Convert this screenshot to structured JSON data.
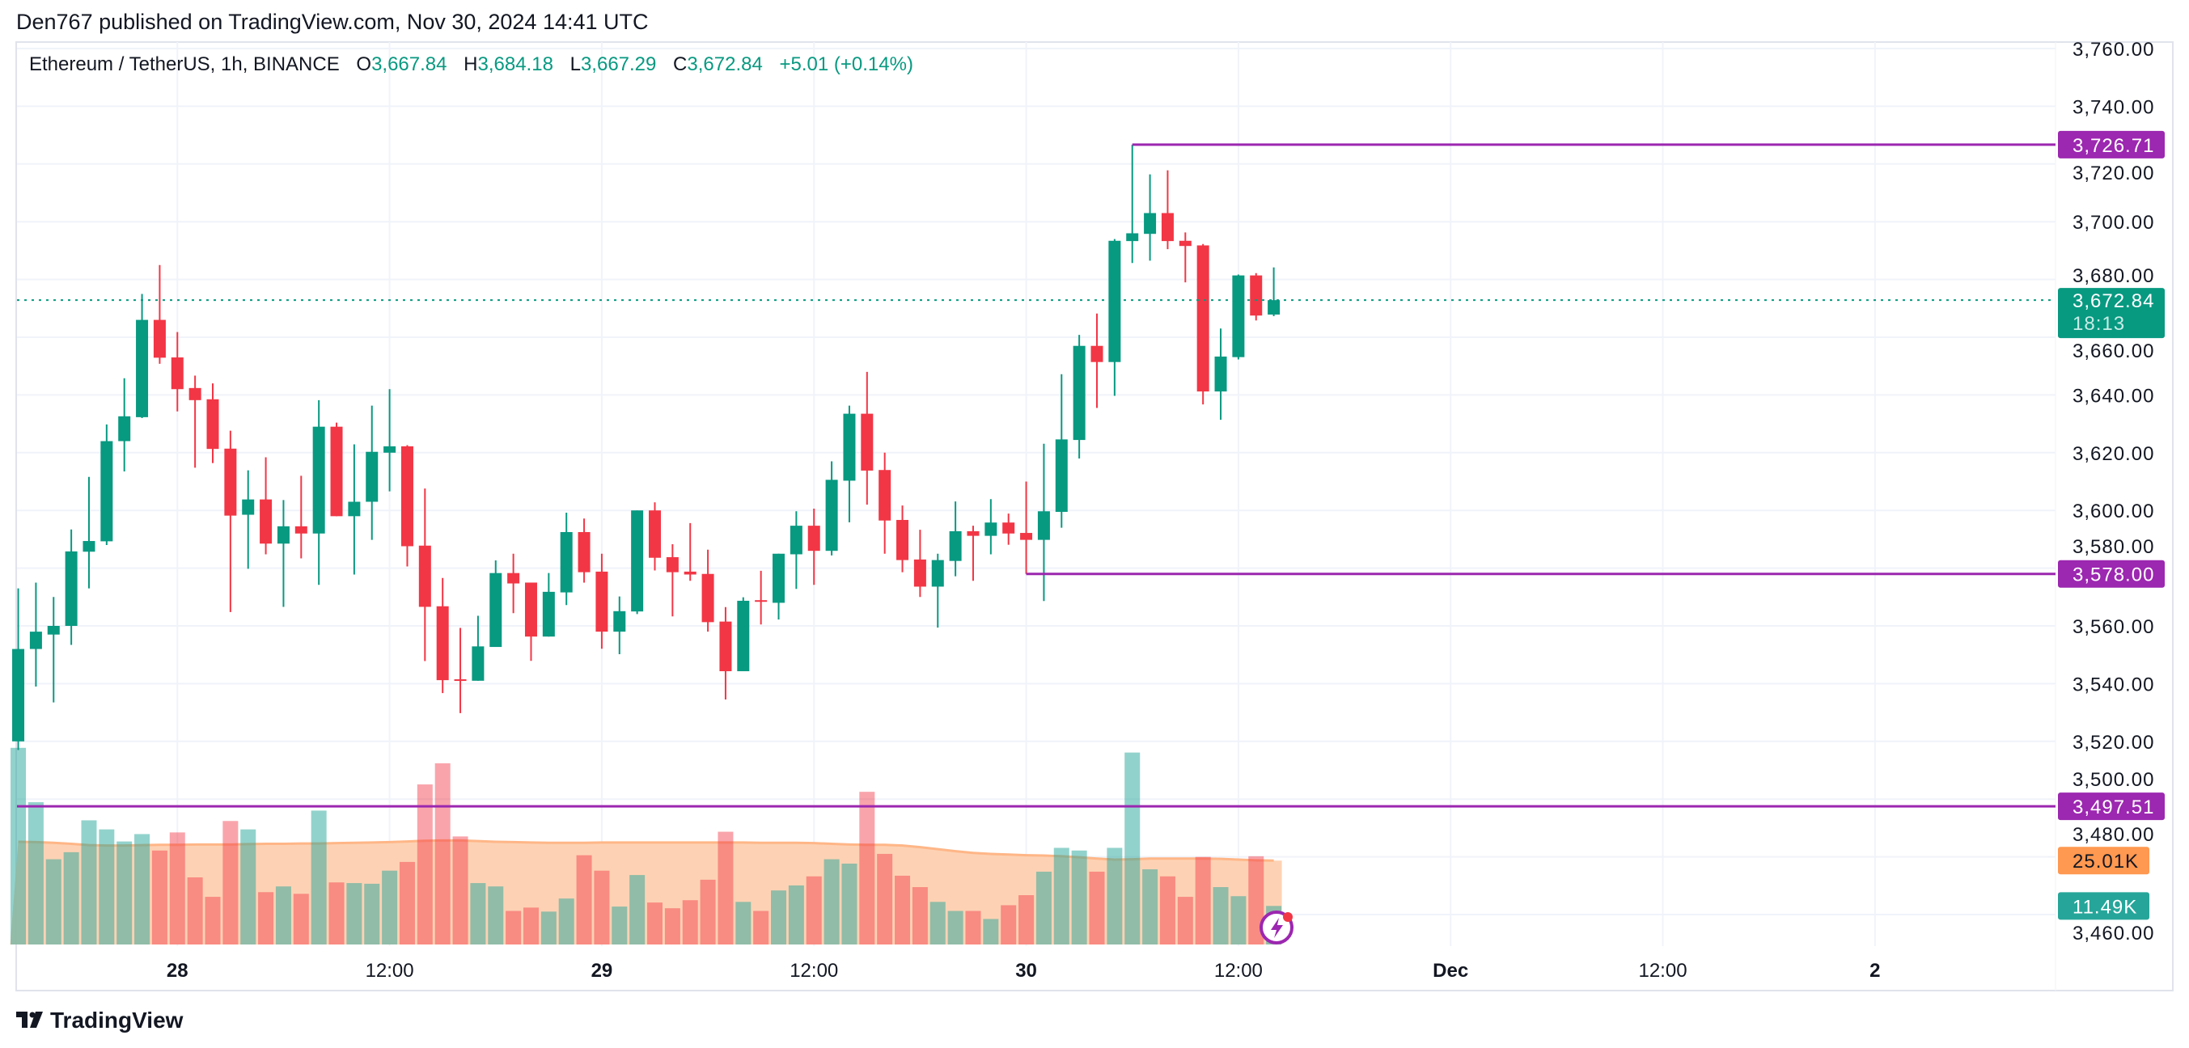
{
  "header": {
    "published": "Den767 published on TradingView.com, Nov 30, 2024 14:41 UTC"
  },
  "legend": {
    "symbol": "Ethereum / TetherUS, 1h, BINANCE",
    "open_label": "O",
    "open": "3,667.84",
    "high_label": "H",
    "high": "3,684.18",
    "low_label": "L",
    "low": "3,667.29",
    "close_label": "C",
    "close": "3,672.84",
    "change": "+5.01 (+0.14%)"
  },
  "price_axis": {
    "labels": [
      "3,760.00",
      "3,740.00",
      "3,720.00",
      "3,700.00",
      "3,680.00",
      "3,660.00",
      "3,640.00",
      "3,620.00",
      "3,600.00",
      "3,580.00",
      "3,560.00",
      "3,540.00",
      "3,520.00",
      "3,500.00",
      "3,480.00",
      "3,460.00"
    ]
  },
  "time_axis": {
    "labels": [
      {
        "text": "28",
        "bold": true
      },
      {
        "text": "12:00",
        "bold": false
      },
      {
        "text": "29",
        "bold": true
      },
      {
        "text": "12:00",
        "bold": false
      },
      {
        "text": "30",
        "bold": true
      },
      {
        "text": "12:00",
        "bold": false
      },
      {
        "text": "Dec",
        "bold": true
      },
      {
        "text": "12:00",
        "bold": false
      },
      {
        "text": "2",
        "bold": true
      }
    ]
  },
  "levels": [
    {
      "price": 3726.71,
      "label": "3,726.71"
    },
    {
      "price": 3578.0,
      "label": "3,578.00"
    },
    {
      "price": 3497.51,
      "label": "3,497.51"
    }
  ],
  "current_price": {
    "price": 3672.84,
    "label": "3,672.84",
    "countdown": "18:13"
  },
  "volume_labels": {
    "ma": "25.01K",
    "volume": "11.49K"
  },
  "colors": {
    "up": "#089981",
    "down": "#f23645",
    "level": "#9c27b0",
    "ma": "#ff9850",
    "volume_up": "#26a69a"
  },
  "icons": {
    "logo": "tradingview-logo-icon",
    "lightning": "lightning-badge-icon"
  },
  "brand": {
    "name": "TradingView"
  },
  "chart_data": {
    "type": "candlestick",
    "interval": "1h",
    "x_start": "2024-11-27 15:00",
    "x_end": "2024-11-30 14:00",
    "ylim": [
      3455,
      3765
    ],
    "grid": true,
    "ohlc": [
      [
        3520,
        3573,
        3517,
        3552
      ],
      [
        3552,
        3575,
        3539,
        3558
      ],
      [
        3557,
        3570,
        3533.5,
        3560
      ],
      [
        3560,
        3593.4,
        3553.4,
        3585.8
      ],
      [
        3585.7,
        3611.6,
        3573,
        3589.4
      ],
      [
        3589.3,
        3629.8,
        3588,
        3624
      ],
      [
        3624,
        3645.8,
        3613.5,
        3632.6
      ],
      [
        3632.3,
        3675,
        3632,
        3666
      ],
      [
        3666,
        3685,
        3650.8,
        3652.9
      ],
      [
        3653,
        3661.8,
        3634.3,
        3642
      ],
      [
        3642.4,
        3646.7,
        3614.8,
        3638.2
      ],
      [
        3638.5,
        3644,
        3616.4,
        3621.3
      ],
      [
        3621.4,
        3627.6,
        3564.8,
        3598.2
      ],
      [
        3598.5,
        3613.9,
        3579.8,
        3603.8
      ],
      [
        3603.8,
        3618.4,
        3584.8,
        3588.5
      ],
      [
        3588.5,
        3603.6,
        3566.6,
        3594.5
      ],
      [
        3594.5,
        3612,
        3583.4,
        3592
      ],
      [
        3592,
        3638.2,
        3574.2,
        3629
      ],
      [
        3629,
        3630.4,
        3598,
        3598
      ],
      [
        3598,
        3622.9,
        3577.8,
        3603
      ],
      [
        3603,
        3636.3,
        3589.8,
        3620.3
      ],
      [
        3620,
        3642,
        3606.6,
        3622.2
      ],
      [
        3622.2,
        3622.6,
        3580.6,
        3587.6
      ],
      [
        3587.8,
        3607.6,
        3547.8,
        3566.6
      ],
      [
        3566.8,
        3576.6,
        3536.7,
        3541.2
      ],
      [
        3541.5,
        3559.3,
        3529.8,
        3541
      ],
      [
        3541,
        3563.5,
        3541,
        3552.9
      ],
      [
        3552.7,
        3582.7,
        3552.7,
        3578.3
      ],
      [
        3578.3,
        3585,
        3564.4,
        3574.7
      ],
      [
        3575,
        3575,
        3547.9,
        3556.3
      ],
      [
        3556.3,
        3578.3,
        3556.3,
        3571.8
      ],
      [
        3571.6,
        3599.2,
        3567.2,
        3592.5
      ],
      [
        3592.5,
        3597.2,
        3575,
        3578.6
      ],
      [
        3578.8,
        3585,
        3552.1,
        3558
      ],
      [
        3558,
        3570.2,
        3550.2,
        3565.1
      ],
      [
        3565,
        3600,
        3564.1,
        3600
      ],
      [
        3600,
        3602.8,
        3579.2,
        3583.6
      ],
      [
        3583.8,
        3588.3,
        3563.3,
        3578.6
      ],
      [
        3578.8,
        3595.6,
        3575.6,
        3577.8
      ],
      [
        3578,
        3586.4,
        3558,
        3561.3
      ],
      [
        3561.5,
        3566.5,
        3534.5,
        3544.3
      ],
      [
        3544.3,
        3569.9,
        3544.3,
        3568.7
      ],
      [
        3568.9,
        3579.1,
        3560.5,
        3568.6
      ],
      [
        3568,
        3585,
        3562.2,
        3585
      ],
      [
        3584.8,
        3599.7,
        3572.8,
        3594.7
      ],
      [
        3594.7,
        3600.6,
        3574.2,
        3586
      ],
      [
        3586,
        3617,
        3584.4,
        3610.6
      ],
      [
        3610.3,
        3636.3,
        3595.9,
        3633.5
      ],
      [
        3633.5,
        3648,
        3602,
        3613.8
      ],
      [
        3614,
        3620,
        3585,
        3596.5
      ],
      [
        3596.7,
        3601.7,
        3578.6,
        3582.8
      ],
      [
        3583,
        3593.3,
        3570,
        3573.6
      ],
      [
        3573.6,
        3585,
        3559.4,
        3582.8
      ],
      [
        3582.5,
        3603.1,
        3577.2,
        3592.8
      ],
      [
        3592.8,
        3594.7,
        3575.6,
        3591.2
      ],
      [
        3591.2,
        3603.9,
        3584.8,
        3595.8
      ],
      [
        3595.8,
        3598.9,
        3588.1,
        3592
      ],
      [
        3592.2,
        3610,
        3578,
        3589.8
      ],
      [
        3589.8,
        3623.1,
        3568.6,
        3599.7
      ],
      [
        3599.5,
        3647.2,
        3594,
        3624.6
      ],
      [
        3624.4,
        3660.8,
        3618,
        3657
      ],
      [
        3657,
        3668.2,
        3635.5,
        3651.4
      ],
      [
        3651.4,
        3694,
        3639.7,
        3693.4
      ],
      [
        3693.3,
        3726.71,
        3685.7,
        3696
      ],
      [
        3695.8,
        3716.4,
        3686.5,
        3703
      ],
      [
        3703,
        3717.8,
        3690.5,
        3693.3
      ],
      [
        3693.4,
        3696.3,
        3679,
        3691.6
      ],
      [
        3691.8,
        3692.3,
        3636.7,
        3641.2
      ],
      [
        3641.2,
        3663,
        3631.4,
        3653.3
      ],
      [
        3653.1,
        3681.7,
        3652.3,
        3681.4
      ],
      [
        3681.4,
        3682.2,
        3665.8,
        3667.5
      ],
      [
        3667.84,
        3684.18,
        3667.29,
        3672.84
      ]
    ],
    "volume_k": [
      58.6,
      42.4,
      25.4,
      27.5,
      37,
      34.3,
      30.7,
      32.9,
      28,
      33.4,
      20,
      14.2,
      36.8,
      34.3,
      15.6,
      17.3,
      15.1,
      39.9,
      18.5,
      18.3,
      18.1,
      22,
      24.6,
      47.7,
      54,
      32.2,
      18.3,
      17.3,
      10,
      11,
      9.8,
      13.7,
      26.6,
      22,
      11.3,
      20.7,
      12.5,
      10.8,
      13.2,
      19.3,
      33.6,
      12.7,
      10,
      16.1,
      17.6,
      20.3,
      25.4,
      24.1,
      45.5,
      27,
      20.5,
      17.1,
      12.7,
      10,
      10,
      7.6,
      11.7,
      14.7,
      21.7,
      28.8,
      28,
      21.7,
      28.8,
      57.2,
      22.4,
      20.3,
      14.2,
      26.1,
      17.1,
      14.4,
      26.3,
      11.49
    ],
    "volume_ma_k": [
      30.6,
      30.5,
      30.3,
      30.0,
      29.6,
      29.5,
      29.5,
      29.6,
      29.7,
      29.7,
      29.8,
      29.8,
      29.8,
      29.9,
      30.0,
      30.0,
      30.1,
      30.1,
      30.2,
      30.3,
      30.4,
      30.5,
      30.7,
      30.9,
      31.0,
      31.0,
      30.8,
      30.6,
      30.5,
      30.4,
      30.3,
      30.3,
      30.3,
      30.4,
      30.4,
      30.4,
      30.4,
      30.4,
      30.4,
      30.4,
      30.4,
      30.4,
      30.3,
      30.3,
      30.3,
      30.2,
      30.0,
      29.8,
      29.7,
      29.7,
      29.5,
      29.0,
      28.4,
      27.8,
      27.3,
      27.0,
      26.8,
      26.6,
      26.5,
      26.3,
      26.0,
      25.6,
      25.3,
      25.4,
      25.6,
      25.6,
      25.6,
      25.6,
      25.5,
      25.3,
      25.1,
      25.01
    ]
  }
}
